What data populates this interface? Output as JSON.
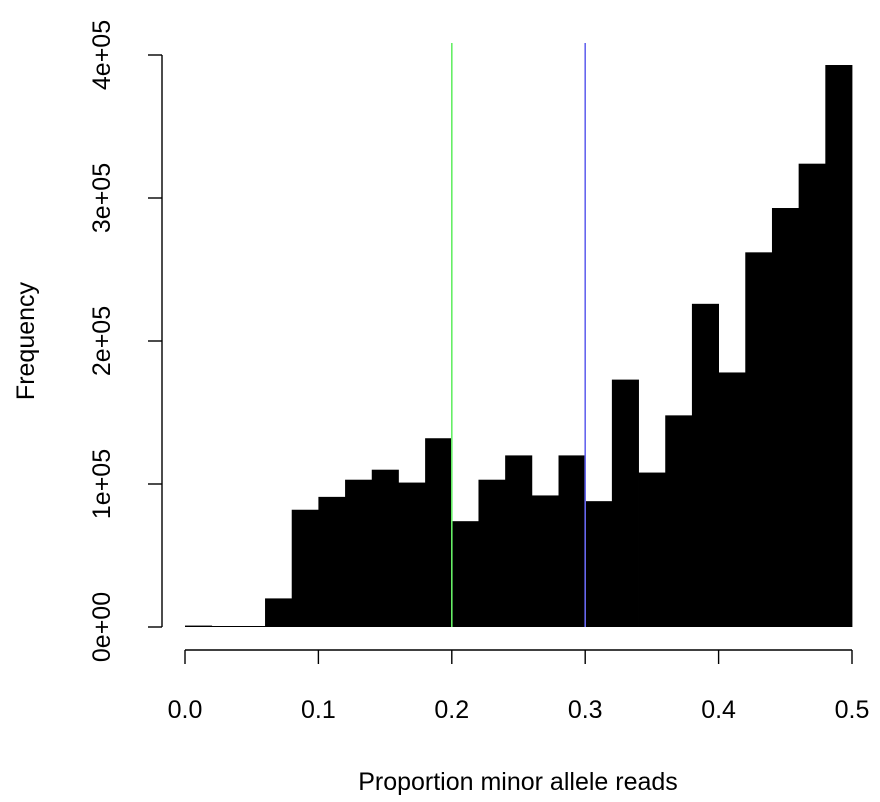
{
  "chart_data": {
    "type": "bar",
    "title": "",
    "xlabel": "Proportion minor allele reads",
    "ylabel": "Frequency",
    "xlim": [
      0.0,
      0.5
    ],
    "ylim": [
      0,
      400000
    ],
    "bin_width": 0.02,
    "bins": [
      {
        "x0": 0.0,
        "x1": 0.02,
        "value": 1000
      },
      {
        "x0": 0.02,
        "x1": 0.04,
        "value": 500
      },
      {
        "x0": 0.04,
        "x1": 0.06,
        "value": 500
      },
      {
        "x0": 0.06,
        "x1": 0.08,
        "value": 20000
      },
      {
        "x0": 0.08,
        "x1": 0.1,
        "value": 82000
      },
      {
        "x0": 0.1,
        "x1": 0.12,
        "value": 91000
      },
      {
        "x0": 0.12,
        "x1": 0.14,
        "value": 103000
      },
      {
        "x0": 0.14,
        "x1": 0.16,
        "value": 110000
      },
      {
        "x0": 0.16,
        "x1": 0.18,
        "value": 101000
      },
      {
        "x0": 0.18,
        "x1": 0.2,
        "value": 132000
      },
      {
        "x0": 0.2,
        "x1": 0.22,
        "value": 74000
      },
      {
        "x0": 0.22,
        "x1": 0.24,
        "value": 103000
      },
      {
        "x0": 0.24,
        "x1": 0.26,
        "value": 120000
      },
      {
        "x0": 0.26,
        "x1": 0.28,
        "value": 92000
      },
      {
        "x0": 0.28,
        "x1": 0.3,
        "value": 120000
      },
      {
        "x0": 0.3,
        "x1": 0.32,
        "value": 88000
      },
      {
        "x0": 0.32,
        "x1": 0.34,
        "value": 173000
      },
      {
        "x0": 0.34,
        "x1": 0.36,
        "value": 108000
      },
      {
        "x0": 0.36,
        "x1": 0.38,
        "value": 148000
      },
      {
        "x0": 0.38,
        "x1": 0.4,
        "value": 226000
      },
      {
        "x0": 0.4,
        "x1": 0.42,
        "value": 178000
      },
      {
        "x0": 0.42,
        "x1": 0.44,
        "value": 262000
      },
      {
        "x0": 0.44,
        "x1": 0.46,
        "value": 293000
      },
      {
        "x0": 0.46,
        "x1": 0.48,
        "value": 324000
      },
      {
        "x0": 0.48,
        "x1": 0.5,
        "value": 393000
      }
    ],
    "x_ticks": [
      {
        "value": 0.0,
        "label": "0.0"
      },
      {
        "value": 0.1,
        "label": "0.1"
      },
      {
        "value": 0.2,
        "label": "0.2"
      },
      {
        "value": 0.3,
        "label": "0.3"
      },
      {
        "value": 0.4,
        "label": "0.4"
      },
      {
        "value": 0.5,
        "label": "0.5"
      }
    ],
    "y_ticks": [
      {
        "value": 0,
        "label": "0e+00"
      },
      {
        "value": 100000,
        "label": "1e+05"
      },
      {
        "value": 200000,
        "label": "2e+05"
      },
      {
        "value": 300000,
        "label": "3e+05"
      },
      {
        "value": 400000,
        "label": "4e+05"
      }
    ],
    "vlines": [
      {
        "x": 0.2,
        "color": "#66ee66"
      },
      {
        "x": 0.3,
        "color": "#6666ee"
      }
    ],
    "bar_color": "#000000",
    "grid": false
  }
}
